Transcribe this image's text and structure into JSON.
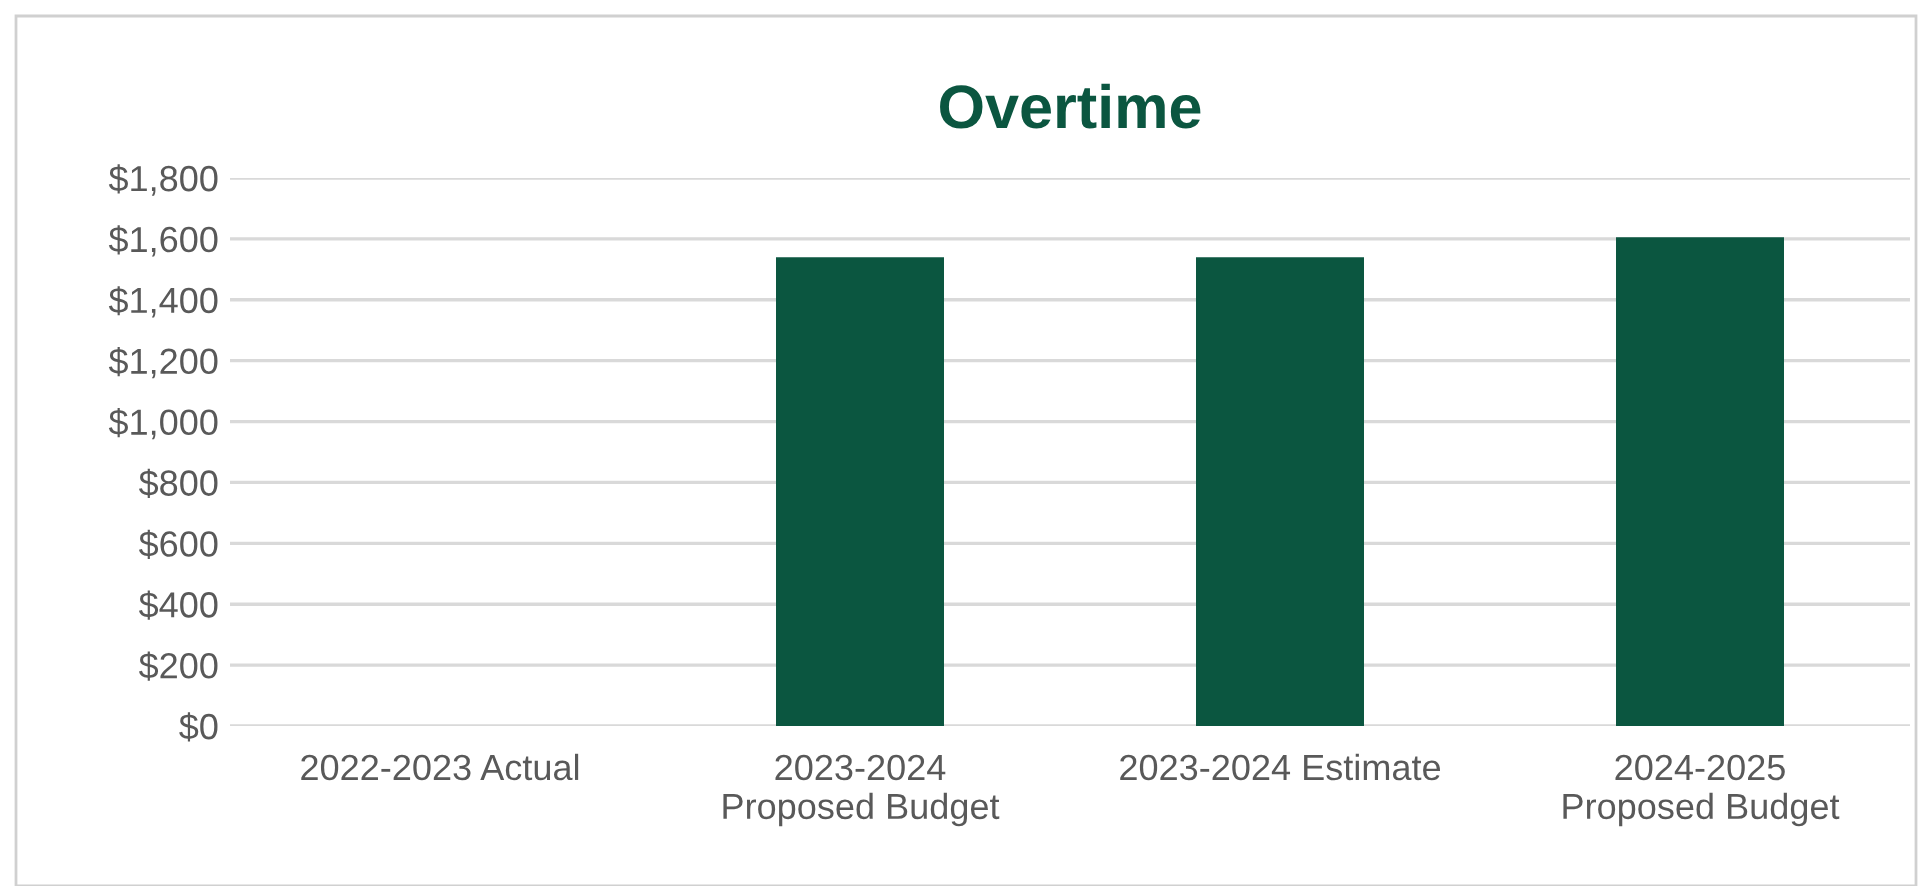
{
  "chart_data": {
    "type": "bar",
    "title": "Overtime",
    "categories": [
      "2022-2023 Actual",
      "2023-2024\nProposed Budget",
      "2023-2024 Estimate",
      "2024-2025\nProposed Budget"
    ],
    "values": [
      0,
      1540,
      1540,
      1605
    ],
    "color": "#0b5640",
    "ylim": [
      0,
      1800
    ],
    "yticks": [
      {
        "value": 0,
        "label": "$0"
      },
      {
        "value": 200,
        "label": "$200"
      },
      {
        "value": 400,
        "label": "$400"
      },
      {
        "value": 600,
        "label": "$600"
      },
      {
        "value": 800,
        "label": "$800"
      },
      {
        "value": 1000,
        "label": "$1,000"
      },
      {
        "value": 1200,
        "label": "$1,200"
      },
      {
        "value": 1400,
        "label": "$1,400"
      },
      {
        "value": 1600,
        "label": "$1,600"
      },
      {
        "value": 1800,
        "label": "$1,800"
      }
    ],
    "grid": "y"
  }
}
